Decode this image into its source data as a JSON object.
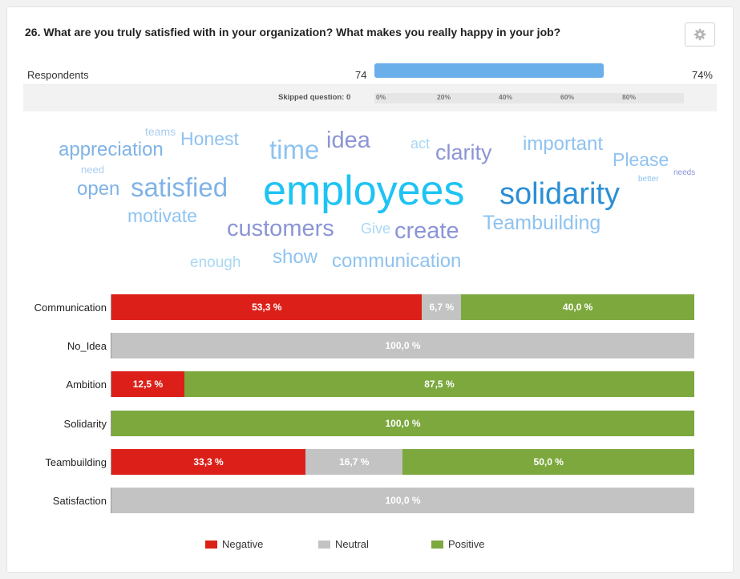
{
  "question": {
    "title": "26.  What are you truly satisfied with in your organization? What makes you really happy in your job?",
    "settings_icon": "gear-icon"
  },
  "respondents": {
    "label": "Respondents",
    "count": "74",
    "percent_text": "74%",
    "percent_value": 74
  },
  "skipped": {
    "label": "Skipped question: 0",
    "scale_ticks": [
      "0%",
      "20%",
      "40%",
      "60%",
      "80%"
    ]
  },
  "word_cloud": [
    {
      "text": "teams",
      "color": "#a9cdf0"
    },
    {
      "text": "Honest",
      "color": "#8fc3ef"
    },
    {
      "text": "time",
      "color": "#8fc3ef"
    },
    {
      "text": "idea",
      "color": "#8b95d6"
    },
    {
      "text": "act",
      "color": "#a9d8f3"
    },
    {
      "text": "clarity",
      "color": "#8b95d6"
    },
    {
      "text": "important",
      "color": "#8fc3ef"
    },
    {
      "text": "appreciation",
      "color": "#7fb3e6"
    },
    {
      "text": "Please",
      "color": "#8fc3ef"
    },
    {
      "text": "need",
      "color": "#a9cdf0"
    },
    {
      "text": "needs",
      "color": "#8b95d6"
    },
    {
      "text": "better",
      "color": "#8fc3ef"
    },
    {
      "text": "satisfied",
      "color": "#7fb3e6"
    },
    {
      "text": "employees",
      "color": "#1ec3f3"
    },
    {
      "text": "solidarity",
      "color": "#2b8fd6"
    },
    {
      "text": "open",
      "color": "#7fb3e6"
    },
    {
      "text": "motivate",
      "color": "#8fc3ef"
    },
    {
      "text": "customers",
      "color": "#8b95d6"
    },
    {
      "text": "Give",
      "color": "#a9d8f3"
    },
    {
      "text": "create",
      "color": "#8b95d6"
    },
    {
      "text": "Teambuilding",
      "color": "#8fc3ef"
    },
    {
      "text": "enough",
      "color": "#a9d8f3"
    },
    {
      "text": "show",
      "color": "#8fc3ef"
    },
    {
      "text": "communication",
      "color": "#8fc3ef"
    }
  ],
  "sentiment": {
    "colors": {
      "negative": "#dc2019",
      "neutral": "#c3c3c3",
      "positive": "#7ca83e"
    },
    "rows": [
      {
        "label": "Communication",
        "negative": 53.3,
        "neutral": 6.7,
        "positive": 40.0,
        "neg_text": "53,3 %",
        "neu_text": "6,7 %",
        "pos_text": "40,0 %"
      },
      {
        "label": "No_Idea",
        "negative": 0,
        "neutral": 100,
        "positive": 0,
        "neg_text": "",
        "neu_text": "100,0 %",
        "pos_text": ""
      },
      {
        "label": "Ambition",
        "negative": 12.5,
        "neutral": 0,
        "positive": 87.5,
        "neg_text": "12,5 %",
        "neu_text": "",
        "pos_text": "87,5 %"
      },
      {
        "label": "Solidarity",
        "negative": 0,
        "neutral": 0,
        "positive": 100,
        "neg_text": "",
        "neu_text": "",
        "pos_text": "100,0 %"
      },
      {
        "label": "Teambuilding",
        "negative": 33.3,
        "neutral": 16.7,
        "positive": 50.0,
        "neg_text": "33,3 %",
        "neu_text": "16,7 %",
        "pos_text": "50,0 %"
      },
      {
        "label": "Satisfaction",
        "negative": 0,
        "neutral": 100,
        "positive": 0,
        "neg_text": "",
        "neu_text": "100,0 %",
        "pos_text": ""
      }
    ],
    "legend": {
      "negative": "Negative",
      "neutral": "Neutral",
      "positive": "Positive"
    }
  }
}
